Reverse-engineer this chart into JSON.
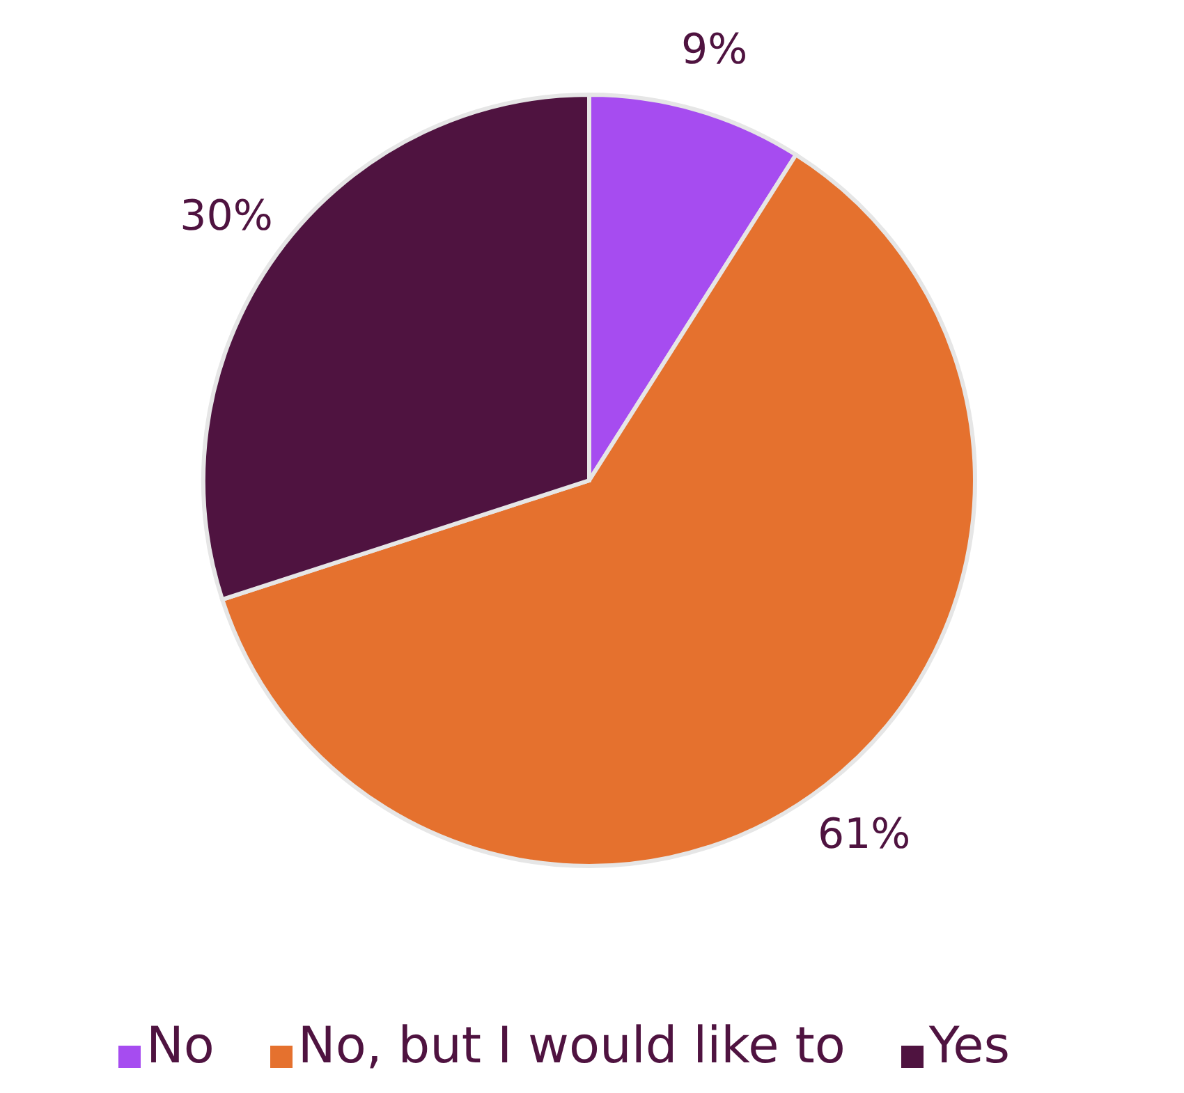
{
  "chart_data": {
    "type": "pie",
    "categories": [
      "No",
      "No, but I would like to",
      "Yes"
    ],
    "values": [
      9,
      61,
      30
    ],
    "colors": [
      "#a64cf0",
      "#e5712e",
      "#4f1340"
    ],
    "value_labels": [
      "9%",
      "61%",
      "30%"
    ],
    "legend": "bottom"
  }
}
